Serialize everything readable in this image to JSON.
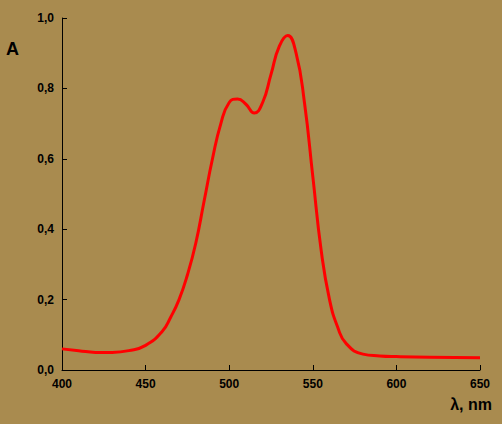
{
  "chart_data": {
    "type": "line",
    "x_label": "λ, nm",
    "y_label": "A",
    "color": "#ff0000",
    "x": [
      400,
      410,
      420,
      430,
      440,
      450,
      460,
      465,
      470,
      475,
      480,
      485,
      490,
      495,
      500,
      505,
      510,
      515,
      520,
      525,
      530,
      535,
      540,
      545,
      550,
      555,
      560,
      565,
      570,
      580,
      590,
      600,
      620,
      650
    ],
    "values": [
      0.06,
      0.055,
      0.05,
      0.05,
      0.055,
      0.07,
      0.11,
      0.15,
      0.2,
      0.27,
      0.36,
      0.48,
      0.6,
      0.7,
      0.76,
      0.77,
      0.755,
      0.73,
      0.76,
      0.84,
      0.92,
      0.95,
      0.9,
      0.76,
      0.55,
      0.34,
      0.2,
      0.12,
      0.075,
      0.045,
      0.04,
      0.038,
      0.036,
      0.035
    ],
    "xlim": [
      400,
      650
    ],
    "xticks": [
      400,
      450,
      500,
      550,
      600,
      650
    ],
    "ylim": [
      0,
      1
    ],
    "yticks": [
      {
        "value": 0,
        "label": "0,0"
      },
      {
        "value": 0.2,
        "label": "0,2"
      },
      {
        "value": 0.4,
        "label": "0,4"
      },
      {
        "value": 0.6,
        "label": "0,6"
      },
      {
        "value": 0.8,
        "label": "0,8"
      },
      {
        "value": 1,
        "label": "1,0"
      }
    ],
    "grid": false
  }
}
